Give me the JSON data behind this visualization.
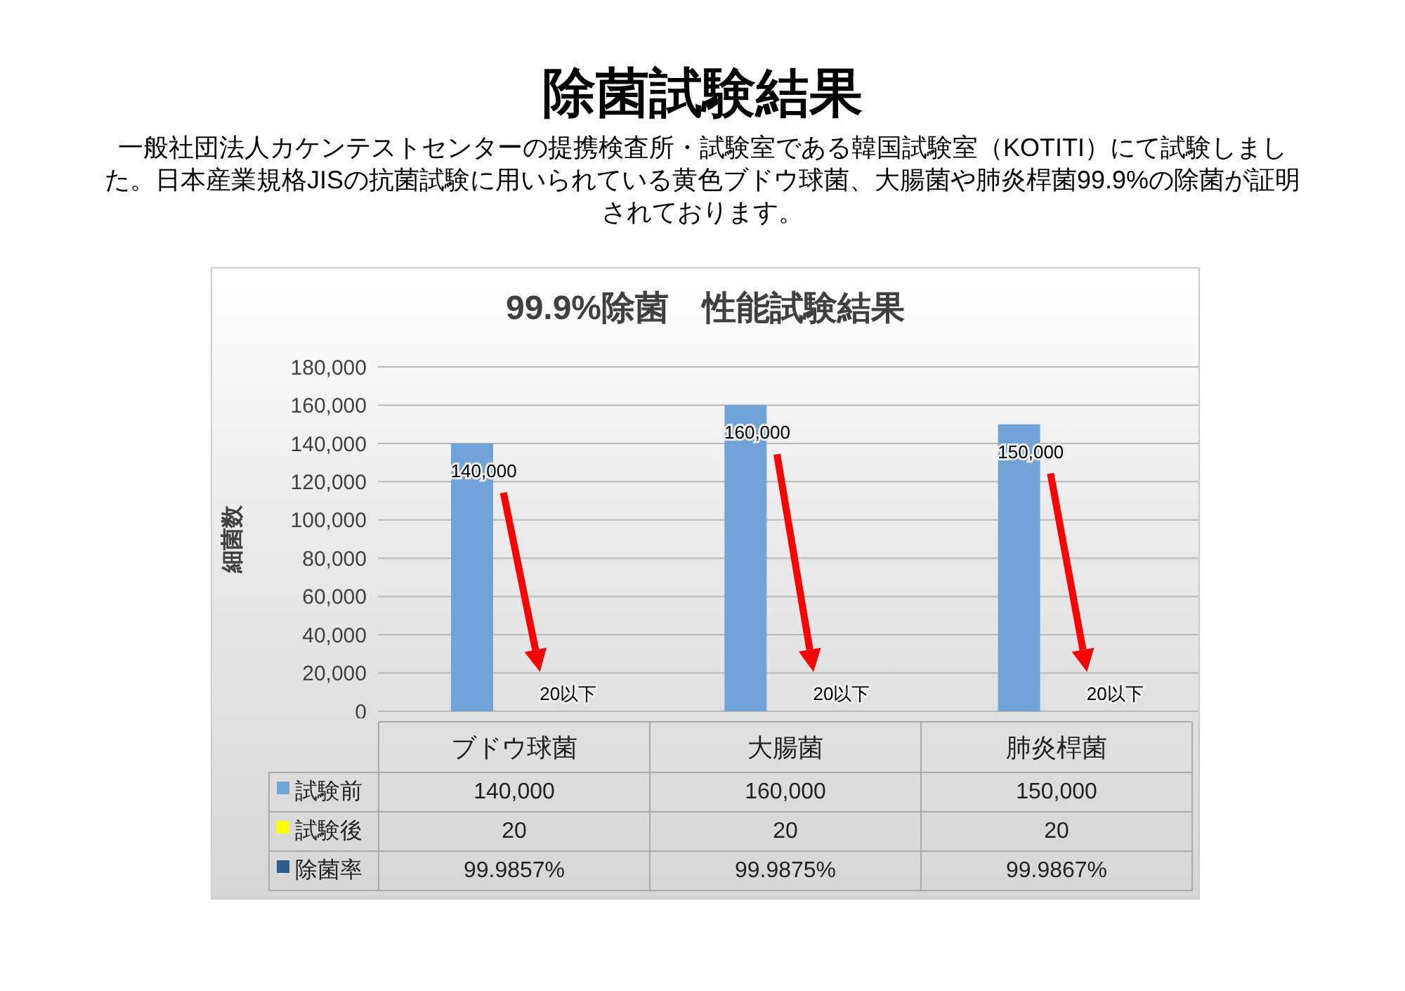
{
  "chart_data": {
    "type": "bar",
    "title": "除菌試験結果",
    "subtitle": "一般社団法人カケンテストセンターの提携検査所・試験室である韓国試験室（KOTITI）にて試験しました。日本産業規格JISの抗菌試験に用いられている黄色ブドウ球菌、大腸菌や肺炎桿菌99.9%の除菌が証明されております。",
    "annotations": [
      "99.9%除菌　性能試験結果",
      "140,000",
      "160,000",
      "150,000",
      "20以下",
      "20以下",
      "20以下"
    ],
    "ylabel": "細菌数",
    "categories": [
      "ブドウ球菌",
      "大腸菌",
      "肺炎桿菌"
    ],
    "series": [
      {
        "name": "試験前",
        "color": "#70a3d8",
        "values": [
          140000,
          160000,
          150000
        ],
        "value_labels": [
          "140,000",
          "160,000",
          "150,000"
        ]
      },
      {
        "name": "試験後",
        "color": "#ffff00",
        "values": [
          20,
          20,
          20
        ],
        "value_labels": [
          "20",
          "20",
          "20"
        ]
      },
      {
        "name": "除菌率",
        "type": "other",
        "color": "#2f5f8f",
        "values": [
          null,
          null,
          null
        ],
        "value_labels": [
          "99.9857%",
          "99.9875%",
          "99.9867%"
        ]
      }
    ],
    "ylim": [
      0,
      180000
    ],
    "yticks": [
      0,
      {
        "value": 20000,
        "label": "20,000"
      },
      {
        "value": 40000,
        "label": "40,000"
      },
      {
        "value": 60000,
        "label": "60,000"
      },
      {
        "value": 80000,
        "label": "80,000"
      },
      {
        "value": 100000,
        "label": "100,000"
      },
      {
        "value": 120000,
        "label": "120,000"
      },
      {
        "value": 140000,
        "label": "140,000"
      },
      {
        "value": 160000,
        "label": "160,000"
      },
      {
        "value": 180000,
        "label": "180,000"
      }
    ],
    "grid": "y",
    "legend": "bottom",
    "data_labels": true
  }
}
